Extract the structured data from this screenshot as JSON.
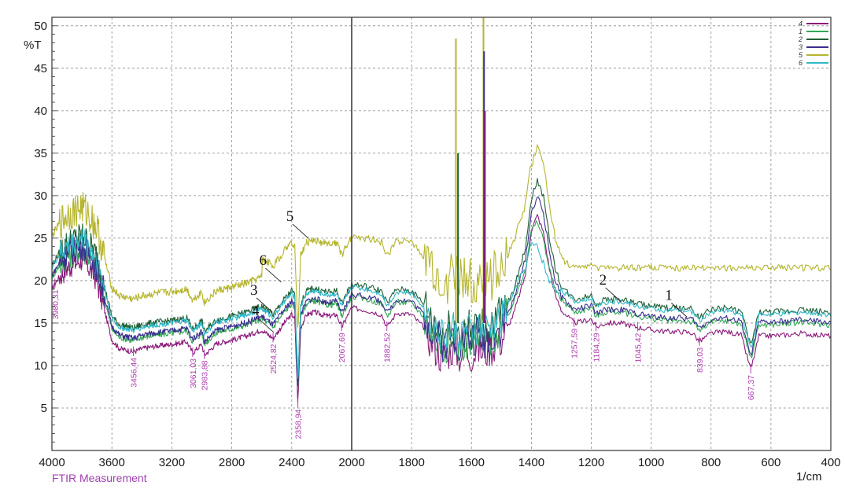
{
  "chart_data": {
    "type": "line",
    "title": "",
    "footer": "FTIR Measurement",
    "ylabel": "%T",
    "xlabel": "1/cm",
    "xlim": [
      4000,
      400
    ],
    "ylim": [
      0,
      51
    ],
    "x_axis_reversed": true,
    "grid": true,
    "legend_position": "top-right",
    "x_ticks": [
      "4000",
      "3600",
      "3200",
      "2800",
      "2400",
      "2000",
      "1800",
      "1600",
      "1400",
      "1200",
      "1000",
      "800",
      "600",
      "400"
    ],
    "y_ticks": [
      "5",
      "10",
      "15",
      "20",
      "25",
      "30",
      "35",
      "40",
      "45",
      "50"
    ],
    "series": [
      {
        "name": "4",
        "color": "#8a1a7a",
        "offset": -1.0,
        "noise": 0.9,
        "gain": 1.05
      },
      {
        "name": "1",
        "color": "#33a855",
        "offset": 0.3,
        "noise": 1.0,
        "gain": 0.9
      },
      {
        "name": "2",
        "color": "#1f5f35",
        "offset": 1.8,
        "noise": 1.1,
        "gain": 1.15
      },
      {
        "name": "3",
        "color": "#3a2f8e",
        "offset": 0.6,
        "noise": 1.0,
        "gain": 1.1
      },
      {
        "name": "5",
        "color": "#b5b52e",
        "offset": 5.2,
        "noise": 1.3,
        "gain": 1.2
      },
      {
        "name": "6",
        "color": "#2fb8c8",
        "offset": 1.5,
        "noise": 0.9,
        "gain": 0.6
      }
    ],
    "base_curve": {
      "x": [
        4000,
        3950,
        3900,
        3850,
        3800,
        3750,
        3700,
        3650,
        3600,
        3550,
        3500,
        3456,
        3400,
        3300,
        3200,
        3100,
        3061,
        3000,
        2983,
        2900,
        2800,
        2700,
        2600,
        2524,
        2450,
        2400,
        2380,
        2359,
        2340,
        2300,
        2250,
        2200,
        2150,
        2100,
        2067,
        2000,
        1950,
        1900,
        1882,
        1850,
        1800,
        1760,
        1720,
        1700,
        1680,
        1660,
        1640,
        1620,
        1600,
        1580,
        1560,
        1540,
        1500,
        1460,
        1420,
        1400,
        1380,
        1360,
        1340,
        1320,
        1300,
        1280,
        1257,
        1230,
        1200,
        1184,
        1150,
        1100,
        1045,
        1000,
        950,
        900,
        860,
        839,
        800,
        750,
        700,
        667,
        640,
        600,
        550,
        500,
        450,
        400
      ],
      "y": [
        20.0,
        21.5,
        22.5,
        23.0,
        23.5,
        22.5,
        21.0,
        17.5,
        14.0,
        13.0,
        12.8,
        12.6,
        13.0,
        13.3,
        13.5,
        13.8,
        12.5,
        13.5,
        12.2,
        13.6,
        14.0,
        14.5,
        15.2,
        14.2,
        16.0,
        17.0,
        16.5,
        6.5,
        15.5,
        17.0,
        17.3,
        17.0,
        16.8,
        17.0,
        15.5,
        17.8,
        17.5,
        17.0,
        15.5,
        17.2,
        17.0,
        15.5,
        13.0,
        12.0,
        12.5,
        13.0,
        12.2,
        12.8,
        12.2,
        13.0,
        12.5,
        13.0,
        14.0,
        17.0,
        21.5,
        26.5,
        28.0,
        26.0,
        22.0,
        19.0,
        17.5,
        16.8,
        16.0,
        16.2,
        16.5,
        15.5,
        16.0,
        16.0,
        15.5,
        15.2,
        15.0,
        15.0,
        14.8,
        13.8,
        14.8,
        15.0,
        14.6,
        10.5,
        14.5,
        14.5,
        14.6,
        14.8,
        14.6,
        14.5
      ]
    },
    "peak_labels": [
      {
        "x": 3980,
        "label": "3980,31"
      },
      {
        "x": 3456.44,
        "label": "3456,44"
      },
      {
        "x": 3061.03,
        "label": "3061,03"
      },
      {
        "x": 2983.88,
        "label": "2983,88"
      },
      {
        "x": 2524.82,
        "label": "2524,82"
      },
      {
        "x": 2358.94,
        "label": "2358,94"
      },
      {
        "x": 2067.69,
        "label": "2067,69"
      },
      {
        "x": 1882.52,
        "label": "1882,52"
      },
      {
        "x": 1257.59,
        "label": "1257,59"
      },
      {
        "x": 1184.29,
        "label": "1184,29"
      },
      {
        "x": 1045.42,
        "label": "1045,42"
      },
      {
        "x": 839.03,
        "label": "839,03"
      },
      {
        "x": 667.37,
        "label": "667,37"
      }
    ],
    "curve_annotations": [
      {
        "label": "5",
        "x": 2290,
        "y": 25.0
      },
      {
        "label": "6",
        "x": 2470,
        "y": 19.8
      },
      {
        "label": "3",
        "x": 2530,
        "y": 16.3
      },
      {
        "label": "4",
        "x": 2520,
        "y": 13.9
      },
      {
        "label": "2",
        "x": 1100,
        "y": 17.5
      },
      {
        "label": "1",
        "x": 880,
        "y": 15.7
      }
    ]
  }
}
